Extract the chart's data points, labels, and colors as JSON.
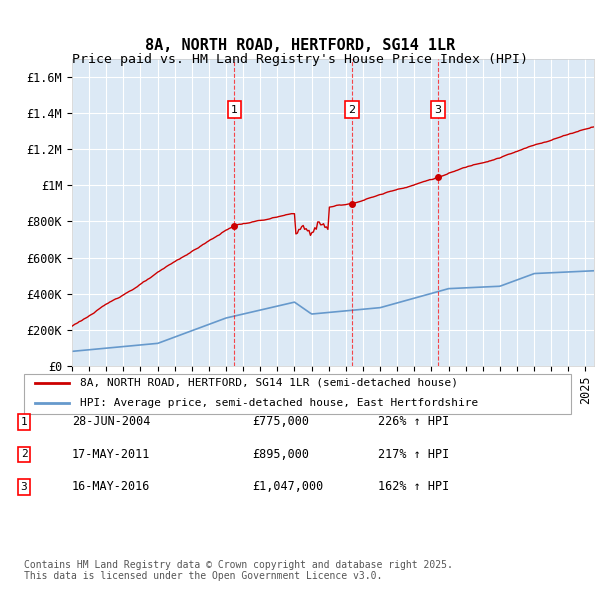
{
  "title": "8A, NORTH ROAD, HERTFORD, SG14 1LR",
  "subtitle": "Price paid vs. HM Land Registry's House Price Index (HPI)",
  "ylabel_ticks": [
    "£0",
    "£200K",
    "£400K",
    "£600K",
    "£800K",
    "£1M",
    "£1.2M",
    "£1.4M",
    "£1.6M"
  ],
  "ytick_values": [
    0,
    200000,
    400000,
    600000,
    800000,
    1000000,
    1200000,
    1400000,
    1600000
  ],
  "ylim": [
    0,
    1700000
  ],
  "xlim_start": 1995.0,
  "xlim_end": 2025.5,
  "background_color": "#dce9f5",
  "plot_bg_color": "#dce9f5",
  "grid_color": "#ffffff",
  "sale_dates": [
    2004.49,
    2011.37,
    2016.37
  ],
  "sale_prices": [
    775000,
    895000,
    1047000
  ],
  "sale_labels": [
    "1",
    "2",
    "3"
  ],
  "sale_date_strs": [
    "28-JUN-2004",
    "17-MAY-2011",
    "16-MAY-2016"
  ],
  "sale_price_strs": [
    "£775,000",
    "£895,000",
    "£1,047,000"
  ],
  "sale_hpi_strs": [
    "226% ↑ HPI",
    "217% ↑ HPI",
    "162% ↑ HPI"
  ],
  "red_line_color": "#cc0000",
  "blue_line_color": "#6699cc",
  "legend_label_red": "8A, NORTH ROAD, HERTFORD, SG14 1LR (semi-detached house)",
  "legend_label_blue": "HPI: Average price, semi-detached house, East Hertfordshire",
  "footer_text": "Contains HM Land Registry data © Crown copyright and database right 2025.\nThis data is licensed under the Open Government Licence v3.0.",
  "title_fontsize": 11,
  "subtitle_fontsize": 9.5,
  "tick_fontsize": 8.5,
  "legend_fontsize": 8,
  "footer_fontsize": 7
}
